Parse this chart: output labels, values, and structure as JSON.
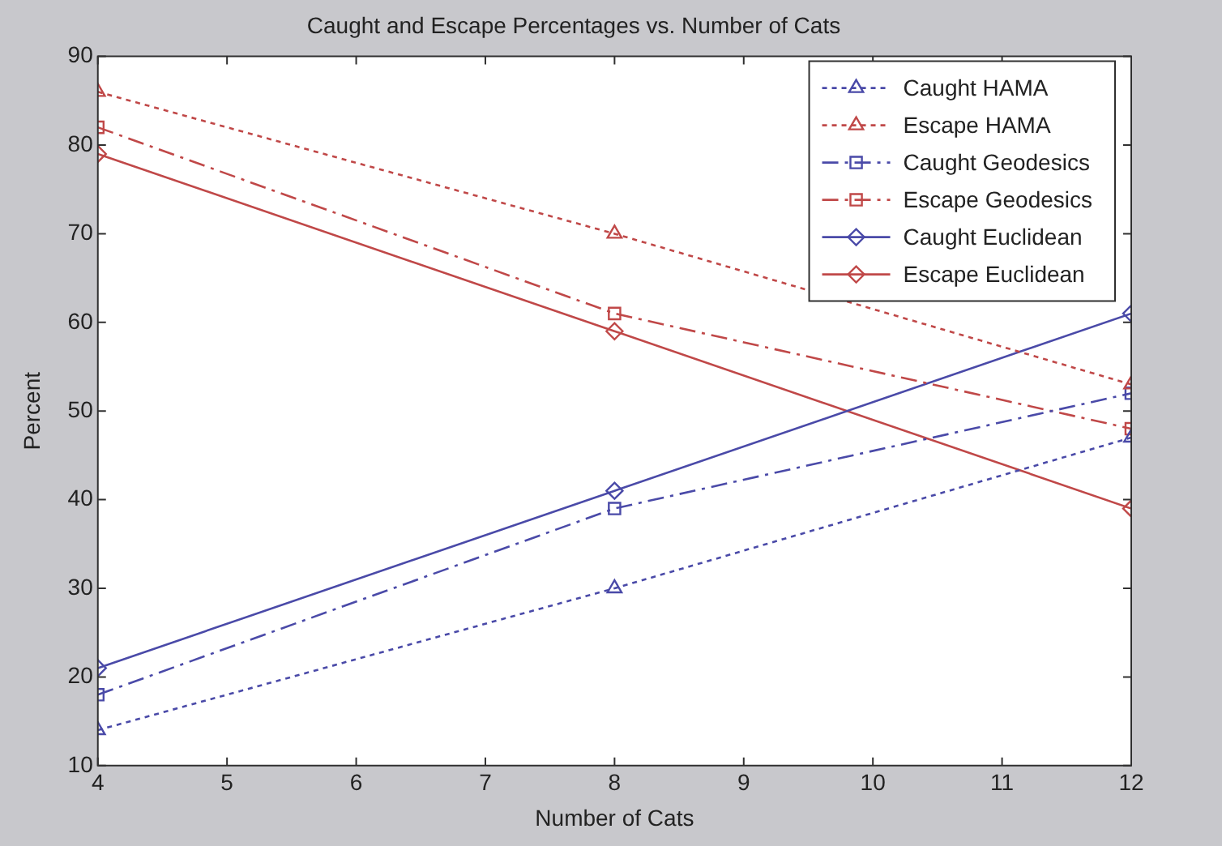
{
  "chart_data": {
    "type": "line",
    "title": "Caught and Escape Percentages vs. Number of Cats",
    "xlabel": "Number of Cats",
    "ylabel": "Percent",
    "x": [
      4,
      8,
      12
    ],
    "xlim": [
      4,
      12
    ],
    "xticks": [
      4,
      5,
      6,
      7,
      8,
      9,
      10,
      11,
      12
    ],
    "ylim": [
      10,
      90
    ],
    "yticks": [
      10,
      20,
      30,
      40,
      50,
      60,
      70,
      80,
      90
    ],
    "grid": false,
    "legend": "top right",
    "series": [
      {
        "name": "Caught HAMA",
        "color": "#4a4aa8",
        "values": [
          14,
          30,
          47
        ],
        "marker": "triangle",
        "line_style": "dotted"
      },
      {
        "name": "Escape HAMA",
        "color": "#c04848",
        "values": [
          86,
          70,
          53
        ],
        "marker": "triangle",
        "line_style": "dotted"
      },
      {
        "name": "Caught Geodesics",
        "color": "#4a4aa8",
        "values": [
          18,
          39,
          52
        ],
        "marker": "square",
        "line_style": "dashdot"
      },
      {
        "name": "Escape Geodesics",
        "color": "#c04848",
        "values": [
          82,
          61,
          48
        ],
        "marker": "square",
        "line_style": "dashdot"
      },
      {
        "name": "Caught Euclidean",
        "color": "#4a4aa8",
        "values": [
          21,
          41,
          61
        ],
        "marker": "diamond",
        "line_style": "solid"
      },
      {
        "name": "Escape Euclidean",
        "color": "#c04848",
        "values": [
          79,
          59,
          39
        ],
        "marker": "diamond",
        "line_style": "solid"
      }
    ]
  }
}
